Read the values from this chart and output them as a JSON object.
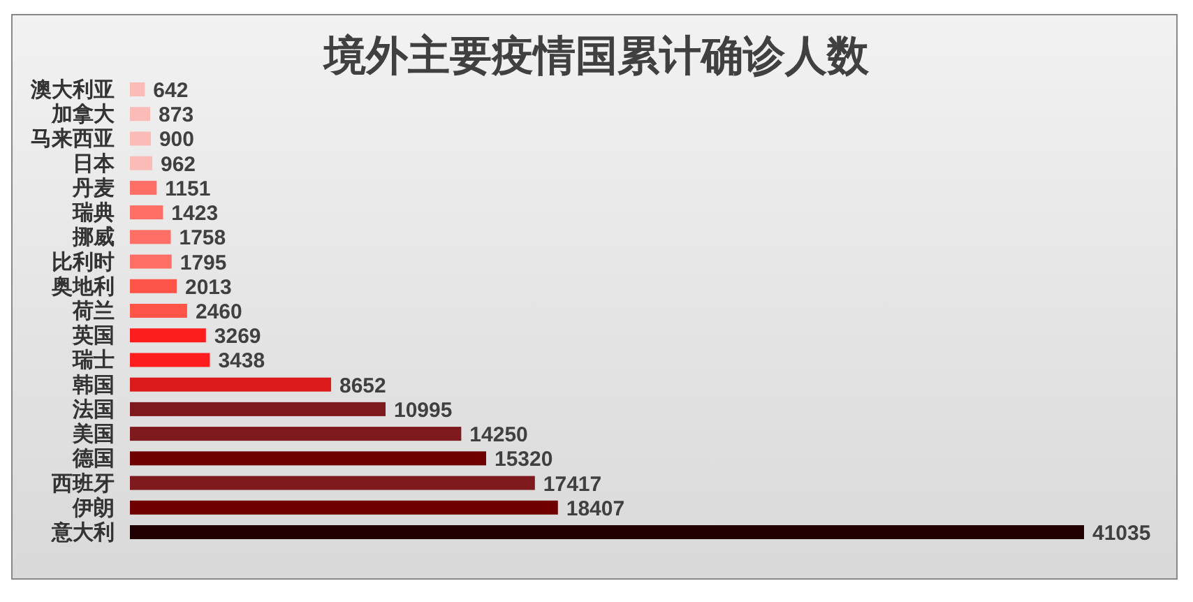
{
  "chart_data": {
    "type": "bar",
    "orientation": "horizontal",
    "title": "境外主要疫情国累计确诊人数",
    "categories": [
      "澳大利亚",
      "加拿大",
      "马来西亚",
      "日本",
      "丹麦",
      "瑞典",
      "挪威",
      "比利时",
      "奥地利",
      "荷兰",
      "英国",
      "瑞士",
      "韩国",
      "法国",
      "美国",
      "德国",
      "西班牙",
      "伊朗",
      "意大利"
    ],
    "values": [
      642,
      873,
      900,
      962,
      1151,
      1423,
      1758,
      1795,
      2013,
      2460,
      3269,
      3438,
      8652,
      10995,
      14250,
      15320,
      17417,
      18407,
      41035
    ],
    "colors": [
      "#fbbcb8",
      "#fbbcb8",
      "#fbbcb8",
      "#fbbcb8",
      "#ff6f66",
      "#ff6f66",
      "#ff6f66",
      "#ff6f66",
      "#ff5548",
      "#ff5548",
      "#ff1e1e",
      "#ff1e1e",
      "#dc1c1c",
      "#7e1a1d",
      "#7e1a1d",
      "#6e0000",
      "#7e1a1d",
      "#6e0000",
      "#200000"
    ],
    "data_labels": true
  }
}
